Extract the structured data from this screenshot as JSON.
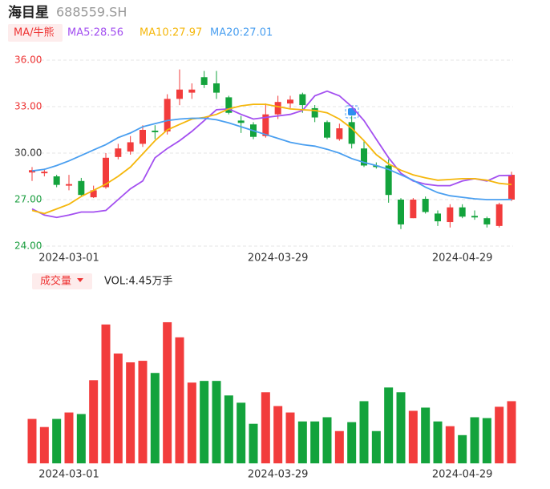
{
  "header": {
    "name": "海目星",
    "code": "688559.SH"
  },
  "chart_data": [
    {
      "type": "candlestick",
      "indicator_button": "MA/牛熊",
      "categories": [
        null,
        null,
        null,
        "2024-03-01",
        null,
        null,
        null,
        null,
        null,
        null,
        null,
        null,
        null,
        null,
        null,
        null,
        null,
        null,
        null,
        null,
        "2024-03-29",
        null,
        null,
        null,
        null,
        null,
        null,
        null,
        null,
        null,
        null,
        null,
        null,
        null,
        null,
        "2024-04-29",
        null,
        null,
        null,
        null
      ],
      "open": [
        28.75,
        28.7,
        28.5,
        27.9,
        28.2,
        27.15,
        27.8,
        29.75,
        30.1,
        30.6,
        31.45,
        31.4,
        33.5,
        33.9,
        34.9,
        34.5,
        33.6,
        32.1,
        31.85,
        31.1,
        32.5,
        33.2,
        33.8,
        32.9,
        32.0,
        30.9,
        32.0,
        30.3,
        29.2,
        29.2,
        27.0,
        25.8,
        27.05,
        26.1,
        25.55,
        26.5,
        25.95,
        25.8,
        25.3,
        27.0
      ],
      "high": [
        29.1,
        29.0,
        28.6,
        28.6,
        28.4,
        27.9,
        30.0,
        30.6,
        31.1,
        31.8,
        31.8,
        33.8,
        35.4,
        34.5,
        35.3,
        35.3,
        33.7,
        32.4,
        32.0,
        33.2,
        33.7,
        33.7,
        33.9,
        33.1,
        32.1,
        31.9,
        32.4,
        30.8,
        29.4,
        29.6,
        27.1,
        27.1,
        27.2,
        26.3,
        26.7,
        26.7,
        26.3,
        25.9,
        26.8,
        28.8
      ],
      "low": [
        28.2,
        28.5,
        27.8,
        27.6,
        27.2,
        27.1,
        27.7,
        29.6,
        29.9,
        30.4,
        30.9,
        31.2,
        33.1,
        33.5,
        34.2,
        33.5,
        32.5,
        31.3,
        30.9,
        31.0,
        32.2,
        32.9,
        32.6,
        32.0,
        30.9,
        30.8,
        30.3,
        29.1,
        29.0,
        26.8,
        25.1,
        25.8,
        26.1,
        25.3,
        25.2,
        25.8,
        25.7,
        25.2,
        25.2,
        26.9
      ],
      "close": [
        28.9,
        28.8,
        27.95,
        28.0,
        27.3,
        27.6,
        29.7,
        30.3,
        30.7,
        31.5,
        31.35,
        33.5,
        34.1,
        34.1,
        34.4,
        33.9,
        32.6,
        31.95,
        31.05,
        32.5,
        33.3,
        33.45,
        33.1,
        32.3,
        31.0,
        31.6,
        30.6,
        29.2,
        29.1,
        27.3,
        25.4,
        27.0,
        26.2,
        25.6,
        26.5,
        25.9,
        25.85,
        25.4,
        26.7,
        28.6
      ],
      "up_color": "#f23c3c",
      "down_color": "#13a33c",
      "ma_lines": [
        {
          "label": "MA5:28.56",
          "color": "#a34ff0",
          "values": [
            26.4,
            26.0,
            25.85,
            26.0,
            26.2,
            26.2,
            26.3,
            27.0,
            27.7,
            28.2,
            29.7,
            30.3,
            30.8,
            31.4,
            32.1,
            32.8,
            32.85,
            32.5,
            32.2,
            32.3,
            32.4,
            32.5,
            32.75,
            33.7,
            34.0,
            33.7,
            33.0,
            32.1,
            30.9,
            29.7,
            28.7,
            28.2,
            28.0,
            27.9,
            27.9,
            28.2,
            28.35,
            28.2,
            28.55,
            28.56
          ]
        },
        {
          "label": "MA10:27.97",
          "color": "#f5b70c",
          "values": [
            26.3,
            26.1,
            26.4,
            26.7,
            27.2,
            27.6,
            28.0,
            28.5,
            29.1,
            29.95,
            30.8,
            31.5,
            31.85,
            32.2,
            32.3,
            32.5,
            32.85,
            33.05,
            33.15,
            33.15,
            33.0,
            32.85,
            32.8,
            32.75,
            32.6,
            32.2,
            31.6,
            30.8,
            29.9,
            29.3,
            28.9,
            28.6,
            28.4,
            28.25,
            28.3,
            28.35,
            28.35,
            28.25,
            28.05,
            27.97
          ]
        },
        {
          "label": "MA20:27.01",
          "color": "#4a9ff0",
          "values": [
            28.85,
            28.95,
            29.2,
            29.5,
            29.85,
            30.2,
            30.55,
            31.0,
            31.3,
            31.7,
            31.9,
            32.1,
            32.2,
            32.25,
            32.25,
            32.15,
            31.95,
            31.7,
            31.45,
            31.2,
            30.95,
            30.7,
            30.55,
            30.45,
            30.25,
            30.0,
            29.65,
            29.4,
            29.2,
            28.95,
            28.6,
            28.25,
            27.8,
            27.45,
            27.25,
            27.15,
            27.05,
            27.0,
            27.0,
            27.01
          ]
        }
      ],
      "ylim": [
        24,
        36
      ],
      "yticks": [
        {
          "value": 36,
          "label": "36.00",
          "color": "#e33"
        },
        {
          "value": 33,
          "label": "33.00",
          "color": "#e33"
        },
        {
          "value": 30,
          "label": "30.00",
          "color": "#333"
        },
        {
          "value": 27,
          "label": "27.00",
          "color": "#1a9e3f"
        },
        {
          "value": 24,
          "label": "24.00",
          "color": "#1a9e3f"
        }
      ],
      "grid": true
    },
    {
      "type": "bar",
      "title": "成交量",
      "label": "VOL:4.45万手",
      "values": [
        3.18,
        2.6,
        3.18,
        3.64,
        3.53,
        5.95,
        9.94,
        7.86,
        7.23,
        7.34,
        6.47,
        10.1,
        9.02,
        5.78,
        5.9,
        5.9,
        4.86,
        4.34,
        2.83,
        5.09,
        4.1,
        3.64,
        3.0,
        3.0,
        3.3,
        2.31,
        2.95,
        4.45,
        2.31,
        5.43,
        5.09,
        3.76,
        3.99,
        3.0,
        2.66,
        2.02,
        3.3,
        3.24,
        4.05,
        4.45
      ],
      "ylim": [
        0,
        10.5
      ]
    }
  ]
}
